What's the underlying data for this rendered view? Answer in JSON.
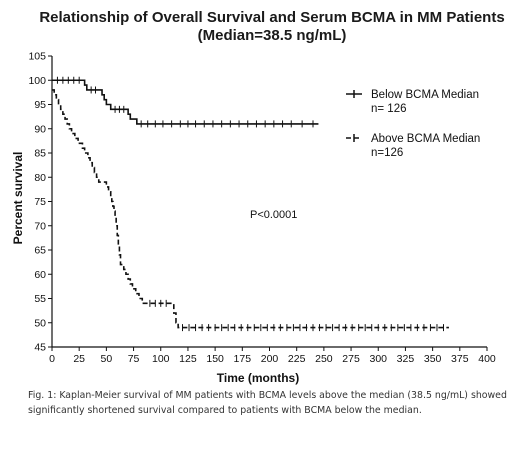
{
  "chart_data": {
    "type": "line",
    "title": "Relationship of Overall  Survival and Serum BCMA in MM Patients",
    "subtitle": "(Median=38.5 ng/mL)",
    "xlabel": "Time (months)",
    "ylabel": "Percent survival",
    "xlim": [
      0,
      400
    ],
    "ylim": [
      45,
      105
    ],
    "x_ticks": [
      0,
      25,
      50,
      75,
      100,
      125,
      150,
      175,
      200,
      225,
      250,
      275,
      300,
      325,
      350,
      375,
      400
    ],
    "y_ticks": [
      45,
      50,
      55,
      60,
      65,
      70,
      75,
      80,
      85,
      90,
      95,
      100,
      105
    ],
    "grid": false,
    "legend_position": "right",
    "annotation": "P<0.0001",
    "series": [
      {
        "name": "Below BCMA Median",
        "legend_line1": "Below BCMA Median",
        "legend_line2": "n= 126",
        "style": "solid",
        "points": [
          [
            0,
            100
          ],
          [
            28,
            100
          ],
          [
            30,
            99
          ],
          [
            32,
            98
          ],
          [
            44,
            98
          ],
          [
            46,
            97
          ],
          [
            48,
            96
          ],
          [
            50,
            95
          ],
          [
            54,
            94
          ],
          [
            68,
            94
          ],
          [
            70,
            93
          ],
          [
            72,
            92
          ],
          [
            76,
            92
          ],
          [
            78,
            91
          ],
          [
            245,
            91
          ]
        ],
        "censor_x": [
          5,
          10,
          15,
          20,
          25,
          36,
          40,
          58,
          62,
          66,
          82,
          88,
          95,
          102,
          110,
          118,
          125,
          132,
          140,
          148,
          156,
          164,
          172,
          180,
          188,
          196,
          204,
          212,
          220,
          230,
          240
        ]
      },
      {
        "name": "Above BCMA Median",
        "legend_line1": "Above BCMA Median",
        "legend_line2": "n=126",
        "style": "dashed",
        "points": [
          [
            0,
            98
          ],
          [
            2,
            97
          ],
          [
            4,
            96
          ],
          [
            6,
            95
          ],
          [
            8,
            94
          ],
          [
            10,
            93
          ],
          [
            12,
            92
          ],
          [
            14,
            91
          ],
          [
            16,
            90
          ],
          [
            18,
            89
          ],
          [
            21,
            88
          ],
          [
            24,
            87
          ],
          [
            28,
            86
          ],
          [
            30,
            85
          ],
          [
            33,
            84
          ],
          [
            35,
            83
          ],
          [
            37,
            82
          ],
          [
            39,
            81
          ],
          [
            41,
            80
          ],
          [
            43,
            79
          ],
          [
            48,
            79
          ],
          [
            50,
            78
          ],
          [
            52,
            77
          ],
          [
            54,
            76
          ],
          [
            55,
            75
          ],
          [
            56,
            74
          ],
          [
            57,
            73
          ],
          [
            58,
            72
          ],
          [
            59,
            70
          ],
          [
            60,
            68
          ],
          [
            61,
            66
          ],
          [
            62,
            64
          ],
          [
            63,
            62
          ],
          [
            66,
            61
          ],
          [
            68,
            60
          ],
          [
            70,
            59
          ],
          [
            72,
            58
          ],
          [
            74,
            57
          ],
          [
            77,
            56
          ],
          [
            80,
            55
          ],
          [
            83,
            54
          ],
          [
            110,
            54
          ],
          [
            112,
            52
          ],
          [
            114,
            50
          ],
          [
            116,
            49
          ],
          [
            365,
            49
          ]
        ],
        "censor_x": [
          90,
          95,
          100,
          105,
          120,
          126,
          132,
          138,
          144,
          150,
          156,
          162,
          168,
          174,
          180,
          186,
          192,
          198,
          204,
          210,
          216,
          222,
          228,
          234,
          240,
          246,
          252,
          258,
          264,
          270,
          276,
          282,
          288,
          294,
          300,
          306,
          312,
          318,
          324,
          330,
          336,
          342,
          348,
          354,
          360
        ]
      }
    ],
    "caption": "Fig. 1: Kaplan-Meier survival of MM patients with BCMA levels above the median (38.5 ng/mL) showed significantly shortened survival compared to patients with BCMA below the median."
  }
}
